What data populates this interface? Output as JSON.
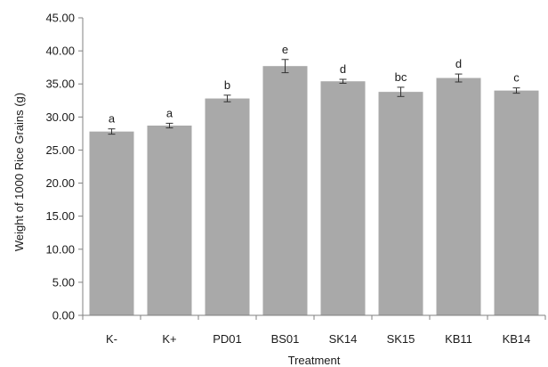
{
  "chart_data": {
    "type": "bar",
    "categories": [
      "K-",
      "K+",
      "PD01",
      "BS01",
      "SK14",
      "SK15",
      "KB11",
      "KB14"
    ],
    "values": [
      27.8,
      28.7,
      32.8,
      37.7,
      35.4,
      33.8,
      35.9,
      34.0
    ],
    "errors": [
      0.4,
      0.35,
      0.5,
      1.0,
      0.3,
      0.7,
      0.6,
      0.4
    ],
    "significance": [
      "a",
      "a",
      "b",
      "e",
      "d",
      "bc",
      "d",
      "c"
    ],
    "xlabel": "Treatment",
    "ylabel": "Weight of 1000 Rice Grains (g)",
    "ylim": [
      0,
      45
    ],
    "yticks": [
      "0.00",
      "5.00",
      "10.00",
      "15.00",
      "20.00",
      "25.00",
      "30.00",
      "35.00",
      "40.00",
      "45.00"
    ],
    "grid": false,
    "legend": "none",
    "bar_color": "#a9a9a9"
  }
}
